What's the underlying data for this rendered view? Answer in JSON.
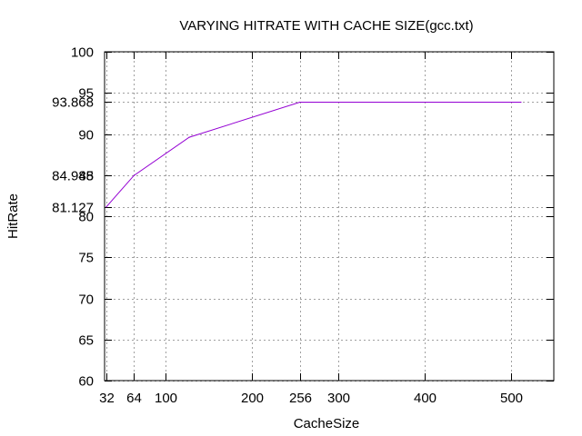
{
  "chart_data": {
    "type": "line",
    "title": "VARYING HITRATE WITH CACHE SIZE(gcc.txt)",
    "xlabel": "CacheSize",
    "ylabel": "HitRate",
    "xlim": [
      30,
      550
    ],
    "ylim": [
      60,
      100
    ],
    "x_ticks": [
      32,
      64,
      100,
      200,
      256,
      300,
      400,
      500
    ],
    "y_ticks": [
      60,
      65,
      70,
      75,
      80,
      85,
      90,
      95,
      100
    ],
    "y_extra_ticks": [
      "81.127",
      "84.948",
      "93.868"
    ],
    "grid": true,
    "series": [
      {
        "x": [
          32,
          64,
          128,
          256,
          512
        ],
        "y": [
          81.127,
          84.948,
          89.6,
          93.868,
          93.868
        ],
        "color": "#9400d3"
      }
    ]
  }
}
